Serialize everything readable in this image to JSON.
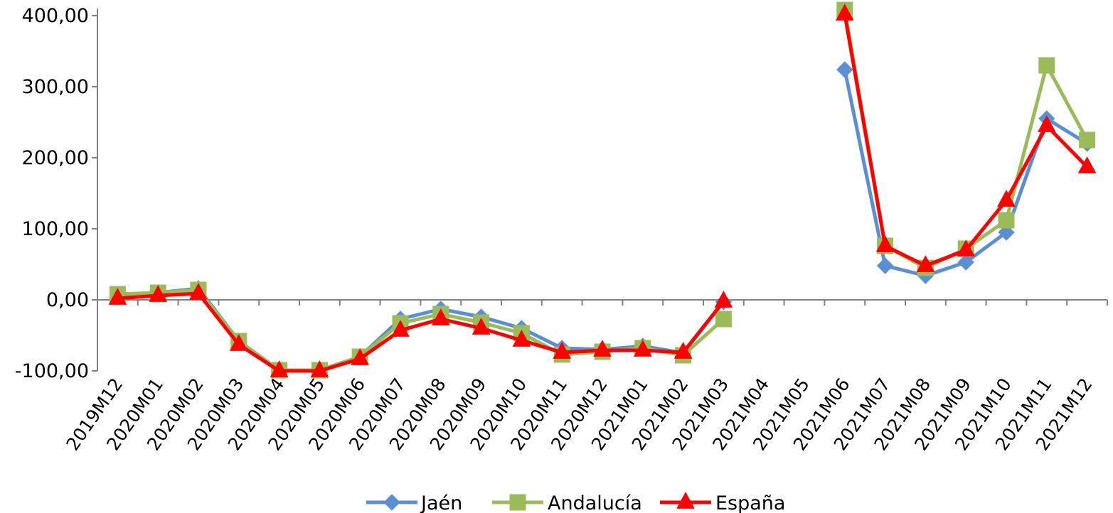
{
  "chart_data": {
    "type": "line",
    "categories": [
      "2019M12",
      "2020M01",
      "2020M02",
      "2020M03",
      "2020M04",
      "2020M05",
      "2020M06",
      "2020M07",
      "2020M08",
      "2020M09",
      "2020M10",
      "2020M11",
      "2020M12",
      "2021M01",
      "2021M02",
      "2021M03",
      "2021M04",
      "2021M05",
      "2021M06",
      "2021M07",
      "2021M08",
      "2021M09",
      "2021M10",
      "2021M11",
      "2021M12"
    ],
    "ylim": [
      -100,
      400
    ],
    "yticks": [
      "-100,00",
      "0,00",
      "100,00",
      "200,00",
      "300,00",
      "400,00"
    ],
    "ytick_values": [
      -100,
      0,
      100,
      200,
      300,
      400
    ],
    "grid": false,
    "legend_position": "bottom",
    "series": [
      {
        "name": "Jaén",
        "color": "#5B8FD4",
        "marker": "diamond",
        "values": [
          5,
          10,
          16,
          -58,
          -99,
          -99,
          -80,
          -27,
          -13,
          -24,
          -40,
          -68,
          -70,
          -65,
          -75,
          -3,
          null,
          null,
          324,
          48,
          34,
          53,
          95,
          255,
          220
        ]
      },
      {
        "name": "Andalucía",
        "color": "#9BBB59",
        "marker": "square",
        "values": [
          8,
          10,
          14,
          -58,
          -99,
          -99,
          -80,
          -33,
          -20,
          -32,
          -47,
          -77,
          -73,
          -68,
          -78,
          -27,
          null,
          null,
          408,
          76,
          45,
          72,
          112,
          330,
          225
        ]
      },
      {
        "name": "España",
        "color": "#FF0000",
        "marker": "triangle",
        "values": [
          2,
          6,
          9,
          -63,
          -100,
          -100,
          -83,
          -43,
          -27,
          -40,
          -57,
          -74,
          -71,
          -71,
          -74,
          -2,
          null,
          null,
          402,
          76,
          48,
          70,
          140,
          245,
          187
        ]
      }
    ]
  }
}
